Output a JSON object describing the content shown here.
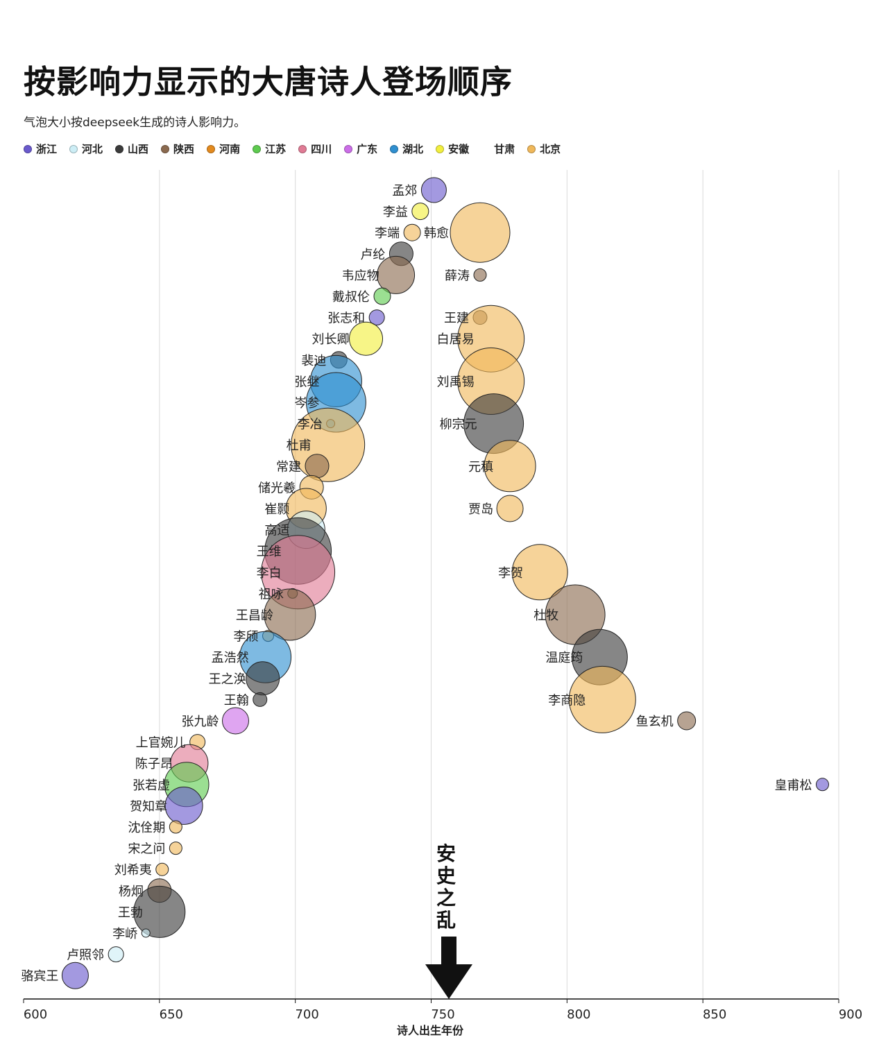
{
  "chart_data": {
    "type": "scatter",
    "title": "按影响力显示的大唐诗人登场顺序",
    "subtitle": "气泡大小按deepseek生成的诗人影响力。",
    "xlabel": "诗人出生年份",
    "xlim": [
      600,
      900
    ],
    "xticks": [
      "600",
      "650",
      "700",
      "750",
      "800",
      "850",
      "900"
    ],
    "grid": true,
    "legend_position": "top",
    "annotation": "安史之乱",
    "annotation_x": 756,
    "regions": [
      {
        "name": "浙江",
        "color": "#6a5acd"
      },
      {
        "name": "河北",
        "color": "#cdeef6"
      },
      {
        "name": "山西",
        "color": "#3b3b3b"
      },
      {
        "name": "陕西",
        "color": "#8b6a4f"
      },
      {
        "name": "河南",
        "color": "#e38a1e"
      },
      {
        "name": "江苏",
        "color": "#5ecb4f"
      },
      {
        "name": "四川",
        "color": "#e07b95"
      },
      {
        "name": "广东",
        "color": "#cc6ee8"
      },
      {
        "name": "湖北",
        "color": "#2f8fd0"
      },
      {
        "name": "安徽",
        "color": "#f2ef3e"
      },
      {
        "name": "甘肃",
        "color": "#ffffff"
      },
      {
        "name": "北京",
        "color": "#f0b85a"
      }
    ],
    "points": [
      {
        "name": "孟郊",
        "x": 751,
        "size": 18,
        "region": "浙江"
      },
      {
        "name": "李益",
        "x": 746,
        "size": 12,
        "region": "安徽"
      },
      {
        "name": "李端",
        "x": 743,
        "size": 12,
        "region": "北京"
      },
      {
        "name": "韩愈",
        "x": 768,
        "size": 43,
        "region": "北京",
        "label_side": "left"
      },
      {
        "name": "卢纶",
        "x": 739,
        "size": 17,
        "region": "山西"
      },
      {
        "name": "韦应物",
        "x": 737,
        "size": 27,
        "region": "陕西"
      },
      {
        "name": "薛涛",
        "x": 768,
        "size": 9,
        "region": "陕西"
      },
      {
        "name": "戴叔伦",
        "x": 732,
        "size": 12,
        "region": "江苏"
      },
      {
        "name": "张志和",
        "x": 730,
        "size": 11,
        "region": "浙江"
      },
      {
        "name": "王建",
        "x": 768,
        "size": 10,
        "region": "陕西"
      },
      {
        "name": "刘长卿",
        "x": 726,
        "size": 24,
        "region": "安徽"
      },
      {
        "name": "白居易",
        "x": 772,
        "size": 48,
        "region": "北京"
      },
      {
        "name": "裴迪",
        "x": 716,
        "size": 12,
        "region": "山西"
      },
      {
        "name": "张继",
        "x": 715,
        "size": 37,
        "region": "湖北"
      },
      {
        "name": "刘禹锡",
        "x": 772,
        "size": 48,
        "region": "北京"
      },
      {
        "name": "岑参",
        "x": 715,
        "size": 43,
        "region": "湖北"
      },
      {
        "name": "李冶",
        "x": 713,
        "size": 6,
        "region": "湖北"
      },
      {
        "name": "柳宗元",
        "x": 773,
        "size": 43,
        "region": "山西"
      },
      {
        "name": "杜甫",
        "x": 712,
        "size": 53,
        "region": "北京"
      },
      {
        "name": "常建",
        "x": 708,
        "size": 17,
        "region": "陕西"
      },
      {
        "name": "元稹",
        "x": 779,
        "size": 37,
        "region": "北京"
      },
      {
        "name": "储光羲",
        "x": 706,
        "size": 17,
        "region": "北京"
      },
      {
        "name": "崔颢",
        "x": 704,
        "size": 29,
        "region": "北京"
      },
      {
        "name": "贾岛",
        "x": 779,
        "size": 19,
        "region": "北京"
      },
      {
        "name": "高适",
        "x": 704,
        "size": 27,
        "region": "河北"
      },
      {
        "name": "王维",
        "x": 701,
        "size": 48,
        "region": "山西"
      },
      {
        "name": "李白",
        "x": 701,
        "size": 53,
        "region": "四川"
      },
      {
        "name": "李贺",
        "x": 790,
        "size": 40,
        "region": "北京"
      },
      {
        "name": "祖咏",
        "x": 699,
        "size": 7,
        "region": "陕西"
      },
      {
        "name": "王昌龄",
        "x": 698,
        "size": 37,
        "region": "陕西"
      },
      {
        "name": "杜牧",
        "x": 803,
        "size": 43,
        "region": "陕西"
      },
      {
        "name": "李颀",
        "x": 690,
        "size": 8,
        "region": "北京"
      },
      {
        "name": "孟浩然",
        "x": 689,
        "size": 37,
        "region": "湖北"
      },
      {
        "name": "温庭筠",
        "x": 812,
        "size": 40,
        "region": "山西"
      },
      {
        "name": "王之涣",
        "x": 688,
        "size": 24,
        "region": "山西"
      },
      {
        "name": "王翰",
        "x": 687,
        "size": 10,
        "region": "山西"
      },
      {
        "name": "李商隐",
        "x": 813,
        "size": 48,
        "region": "北京"
      },
      {
        "name": "张九龄",
        "x": 678,
        "size": 19,
        "region": "广东"
      },
      {
        "name": "鱼玄机",
        "x": 844,
        "size": 13,
        "region": "陕西"
      },
      {
        "name": "上官婉儿",
        "x": 664,
        "size": 11,
        "region": "北京"
      },
      {
        "name": "陈子昂",
        "x": 661,
        "size": 27,
        "region": "四川"
      },
      {
        "name": "张若虚",
        "x": 660,
        "size": 32,
        "region": "江苏"
      },
      {
        "name": "皇甫松",
        "x": 894,
        "size": 9,
        "region": "浙江"
      },
      {
        "name": "贺知章",
        "x": 659,
        "size": 27,
        "region": "浙江"
      },
      {
        "name": "沈佺期",
        "x": 656,
        "size": 9,
        "region": "北京"
      },
      {
        "name": "宋之问",
        "x": 656,
        "size": 9,
        "region": "北京"
      },
      {
        "name": "刘希夷",
        "x": 651,
        "size": 9,
        "region": "北京"
      },
      {
        "name": "杨炯",
        "x": 650,
        "size": 17,
        "region": "陕西"
      },
      {
        "name": "王勃",
        "x": 650,
        "size": 37,
        "region": "山西"
      },
      {
        "name": "李峤",
        "x": 645,
        "size": 6,
        "region": "河北"
      },
      {
        "name": "卢照邻",
        "x": 634,
        "size": 11,
        "region": "河北"
      },
      {
        "name": "骆宾王",
        "x": 619,
        "size": 19,
        "region": "浙江"
      }
    ]
  }
}
